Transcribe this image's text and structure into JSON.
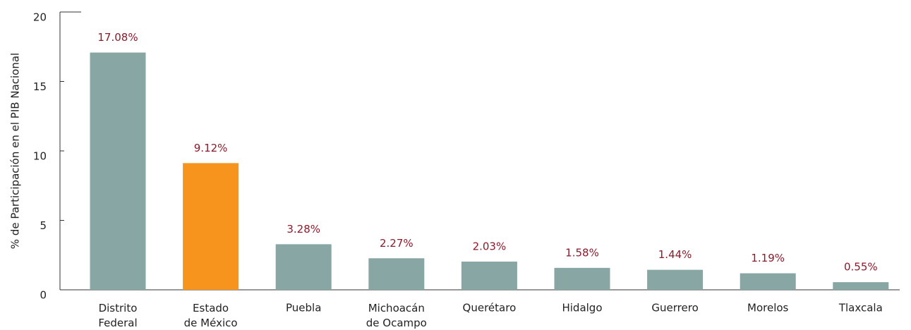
{
  "chart_data": {
    "type": "bar",
    "y_label": "% de Participación en el PIB Nacional",
    "categories": [
      "Distrito\nFederal",
      "Estado\nde México",
      "Puebla",
      "Michoacán\nde Ocampo",
      "Querétaro",
      "Hidalgo",
      "Guerrero",
      "Morelos",
      "Tlaxcala"
    ],
    "values": [
      17.08,
      9.12,
      3.28,
      2.27,
      2.03,
      1.58,
      1.44,
      1.19,
      0.55
    ],
    "value_labels": [
      "17.08%",
      "9.12%",
      "3.28%",
      "2.27%",
      "2.03%",
      "1.58%",
      "1.44%",
      "1.19%",
      "0.55%"
    ],
    "colors": [
      "#87a6a4",
      "#f7941d",
      "#87a6a4",
      "#87a6a4",
      "#87a6a4",
      "#87a6a4",
      "#87a6a4",
      "#87a6a4",
      "#87a6a4"
    ],
    "value_label_color": "#8b1a2b",
    "ylim": [
      0,
      20
    ],
    "yticks": [
      0,
      5,
      10,
      15,
      20
    ],
    "grid": false
  }
}
